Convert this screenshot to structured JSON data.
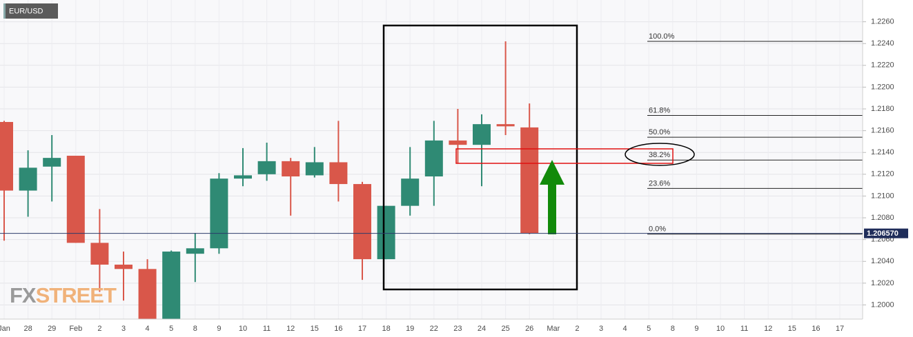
{
  "chart_data": {
    "type": "candlestick",
    "title": "EUR/USD",
    "watermark": [
      "FX",
      "STREET"
    ],
    "categories": [
      "Jan",
      "28",
      "29",
      "Feb",
      "2",
      "3",
      "4",
      "5",
      "8",
      "9",
      "10",
      "11",
      "12",
      "15",
      "16",
      "17",
      "18",
      "19",
      "22",
      "23",
      "24",
      "25",
      "26",
      "Mar",
      "2",
      "3",
      "4",
      "5",
      "8",
      "9",
      "10",
      "11",
      "12",
      "15",
      "16",
      "17"
    ],
    "series": {
      "open": [
        1.2168,
        1.2105,
        1.2127,
        1.2137,
        1.2057,
        1.2037,
        1.2033,
        1.198,
        1.2047,
        1.2052,
        1.2116,
        1.212,
        1.2132,
        1.2119,
        1.2131,
        1.2111,
        1.2042,
        1.2091,
        1.2118,
        1.2151,
        1.2147,
        1.2166,
        1.2163,
        null,
        null,
        null,
        null,
        null,
        null,
        null,
        null,
        null,
        null,
        null,
        null,
        null
      ],
      "high": [
        1.2169,
        1.2142,
        1.2156,
        1.2137,
        1.2088,
        1.2049,
        1.2042,
        1.205,
        1.2066,
        1.2121,
        1.2144,
        1.2149,
        1.2135,
        1.2145,
        1.2169,
        1.2113,
        1.2091,
        1.2145,
        1.2169,
        1.218,
        1.2175,
        1.2242,
        1.2185,
        null,
        null,
        null,
        null,
        null,
        null,
        null,
        null,
        null,
        null,
        null,
        null,
        null
      ],
      "low": [
        1.2059,
        1.2081,
        1.2095,
        1.2057,
        1.2012,
        1.2004,
        1.1975,
        1.1975,
        1.2021,
        1.2047,
        1.2109,
        1.2114,
        1.2082,
        1.2117,
        1.2095,
        1.2023,
        1.2042,
        1.2082,
        1.2091,
        1.213,
        1.2109,
        1.2156,
        1.2065,
        null,
        null,
        null,
        null,
        null,
        null,
        null,
        null,
        null,
        null,
        null,
        null,
        null
      ],
      "close": [
        1.2105,
        1.2126,
        1.2135,
        1.2057,
        1.2037,
        1.2033,
        1.198,
        1.2049,
        1.2052,
        1.2116,
        1.2119,
        1.2132,
        1.2118,
        1.2131,
        1.2111,
        1.2042,
        1.2091,
        1.2116,
        1.2151,
        1.2147,
        1.2166,
        1.2164,
        1.2066,
        null,
        null,
        null,
        null,
        null,
        null,
        null,
        null,
        null,
        null,
        null,
        null,
        null
      ]
    },
    "up_color": "#2f8a74",
    "down_color": "#d9574a",
    "ylim": [
      1.1987,
      1.228
    ],
    "yticks": [
      {
        "value": 1.2,
        "label": "1.2000"
      },
      {
        "value": 1.202,
        "label": "1.2020"
      },
      {
        "value": 1.204,
        "label": "1.2040"
      },
      {
        "value": 1.206,
        "label": "1.2060"
      },
      {
        "value": 1.208,
        "label": "1.2080"
      },
      {
        "value": 1.21,
        "label": "1.2100"
      },
      {
        "value": 1.212,
        "label": "1.2120"
      },
      {
        "value": 1.214,
        "label": "1.2140"
      },
      {
        "value": 1.216,
        "label": "1.2160"
      },
      {
        "value": 1.218,
        "label": "1.2180"
      },
      {
        "value": 1.22,
        "label": "1.2200"
      },
      {
        "value": 1.222,
        "label": "1.2220"
      },
      {
        "value": 1.224,
        "label": "1.2240"
      },
      {
        "value": 1.226,
        "label": "1.2260"
      }
    ],
    "grid": true,
    "last_price": 1.20657,
    "last_price_label": "1.206570",
    "fib_levels": [
      {
        "label": "100.0%",
        "value": 1.2242
      },
      {
        "label": "61.8%",
        "value": 1.2174
      },
      {
        "label": "50.0%",
        "value": 1.2154
      },
      {
        "label": "38.2%",
        "value": 1.2133
      },
      {
        "label": "23.6%",
        "value": 1.2107
      },
      {
        "label": "0.0%",
        "value": 1.2065
      }
    ]
  }
}
